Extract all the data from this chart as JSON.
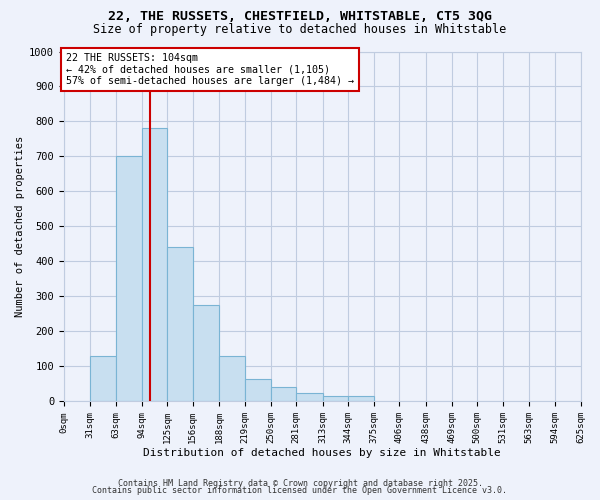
{
  "title1": "22, THE RUSSETS, CHESTFIELD, WHITSTABLE, CT5 3QG",
  "title2": "Size of property relative to detached houses in Whitstable",
  "xlabel": "Distribution of detached houses by size in Whitstable",
  "ylabel": "Number of detached properties",
  "bin_edges": [
    0,
    31,
    63,
    94,
    125,
    156,
    188,
    219,
    250,
    281,
    313,
    344,
    375,
    406,
    438,
    469,
    500,
    531,
    563,
    594,
    625
  ],
  "counts": [
    0,
    130,
    700,
    780,
    440,
    275,
    130,
    65,
    40,
    25,
    15,
    15,
    0,
    0,
    0,
    0,
    0,
    0,
    0,
    0
  ],
  "bar_color": "#c8dff0",
  "bar_edge_color": "#7ab4d4",
  "background_color": "#eef2fb",
  "grid_color": "#c0cce0",
  "vline_x": 104,
  "vline_color": "#cc0000",
  "annotation_box_color": "#ffffff",
  "annotation_border_color": "#cc0000",
  "annotation_line1": "22 THE RUSSETS: 104sqm",
  "annotation_line2": "← 42% of detached houses are smaller (1,105)",
  "annotation_line3": "57% of semi-detached houses are larger (1,484) →",
  "tick_labels": [
    "0sqm",
    "31sqm",
    "63sqm",
    "94sqm",
    "125sqm",
    "156sqm",
    "188sqm",
    "219sqm",
    "250sqm",
    "281sqm",
    "313sqm",
    "344sqm",
    "375sqm",
    "406sqm",
    "438sqm",
    "469sqm",
    "500sqm",
    "531sqm",
    "563sqm",
    "594sqm",
    "625sqm"
  ],
  "ylim": [
    0,
    1000
  ],
  "yticks": [
    0,
    100,
    200,
    300,
    400,
    500,
    600,
    700,
    800,
    900,
    1000
  ],
  "footer1": "Contains HM Land Registry data © Crown copyright and database right 2025.",
  "footer2": "Contains public sector information licensed under the Open Government Licence v3.0."
}
